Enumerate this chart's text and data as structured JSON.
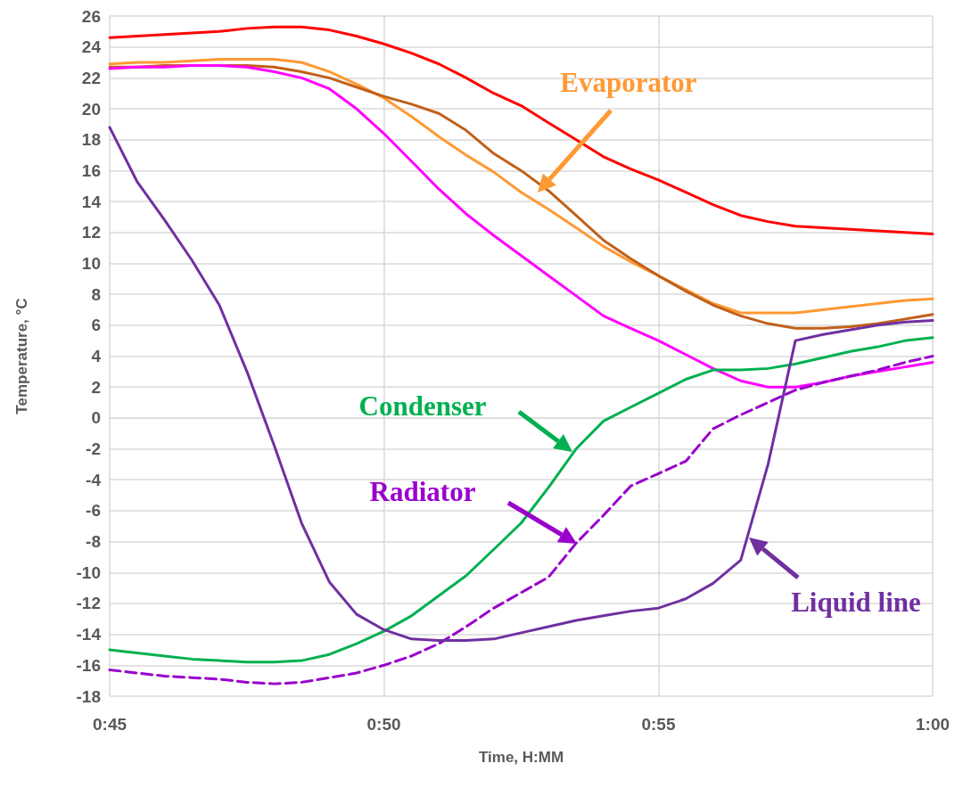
{
  "chart_data": {
    "type": "line",
    "xlabel": "Time, H:MM",
    "ylabel": "Temperature, °C",
    "x": [
      0.75,
      0.7583,
      0.7667,
      0.775,
      0.7833,
      0.7917,
      0.8,
      0.8083,
      0.8167,
      0.825,
      0.8333,
      0.8417,
      0.85,
      0.8583,
      0.8667,
      0.875,
      0.8833,
      0.8917,
      0.9,
      0.9083,
      0.9167,
      0.925,
      0.9333,
      0.9417,
      0.95,
      0.9583,
      0.9667,
      0.975,
      0.9833,
      0.9917,
      1.0
    ],
    "xlim": [
      0.75,
      1.0
    ],
    "xticks": [
      {
        "value": 0.75,
        "label": "0:45"
      },
      {
        "value": 0.8333,
        "label": "0:50"
      },
      {
        "value": 0.9167,
        "label": "0:55"
      },
      {
        "value": 1.0,
        "label": "1:00"
      }
    ],
    "ylim": [
      -18,
      26
    ],
    "yticks": [
      -18,
      -16,
      -14,
      -12,
      -10,
      -8,
      -6,
      -4,
      -2,
      0,
      2,
      4,
      6,
      8,
      10,
      12,
      14,
      16,
      18,
      20,
      22,
      24,
      26
    ],
    "grid": true,
    "marker": "none",
    "line_style": "solid",
    "series": [
      {
        "color": "#ff0000",
        "values": [
          24.6,
          24.7,
          24.8,
          24.9,
          25.0,
          25.2,
          25.3,
          25.3,
          25.1,
          24.7,
          24.2,
          23.6,
          22.9,
          22.0,
          21.0,
          20.2,
          19.1,
          18.0,
          16.9,
          16.1,
          15.4,
          14.6,
          13.8,
          13.1,
          12.7,
          12.4,
          12.3,
          12.2,
          12.1,
          12.0,
          11.9
        ]
      },
      {
        "name": "Evaporator",
        "color": "#ff9933",
        "values": [
          22.9,
          23.0,
          23.0,
          23.1,
          23.2,
          23.2,
          23.2,
          23.0,
          22.4,
          21.6,
          20.7,
          19.5,
          18.2,
          17.0,
          15.9,
          14.6,
          13.5,
          12.3,
          11.1,
          10.1,
          9.2,
          8.3,
          7.4,
          6.8,
          6.8,
          6.8,
          7.0,
          7.2,
          7.4,
          7.6,
          7.7
        ]
      },
      {
        "color": "#c0601a",
        "values": [
          22.7,
          22.7,
          22.8,
          22.8,
          22.8,
          22.8,
          22.7,
          22.4,
          22.0,
          21.4,
          20.8,
          20.3,
          19.7,
          18.6,
          17.1,
          16.0,
          14.7,
          13.1,
          11.5,
          10.3,
          9.2,
          8.2,
          7.3,
          6.6,
          6.1,
          5.8,
          5.8,
          5.9,
          6.1,
          6.4,
          6.7
        ]
      },
      {
        "color": "#ff00ff",
        "values": [
          22.6,
          22.7,
          22.7,
          22.8,
          22.8,
          22.7,
          22.4,
          22.0,
          21.3,
          20.0,
          18.4,
          16.6,
          14.8,
          13.2,
          11.8,
          10.5,
          9.2,
          7.9,
          6.6,
          5.8,
          5.0,
          4.1,
          3.2,
          2.4,
          2.0,
          2.0,
          2.3,
          2.7,
          3.0,
          3.3,
          3.6
        ]
      },
      {
        "name": "Condenser",
        "color": "#00b050",
        "values": [
          -15.0,
          -15.2,
          -15.4,
          -15.6,
          -15.7,
          -15.8,
          -15.8,
          -15.7,
          -15.3,
          -14.6,
          -13.8,
          -12.8,
          -11.5,
          -10.2,
          -8.5,
          -6.8,
          -4.5,
          -2.0,
          -0.2,
          0.7,
          1.6,
          2.5,
          3.1,
          3.1,
          3.2,
          3.5,
          3.9,
          4.3,
          4.6,
          5.0,
          5.2
        ]
      },
      {
        "name": "Radiator",
        "color": "#9900cc",
        "line_style": "dashed",
        "values": [
          -16.3,
          -16.5,
          -16.7,
          -16.8,
          -16.9,
          -17.1,
          -17.2,
          -17.1,
          -16.8,
          -16.5,
          -16.0,
          -15.4,
          -14.6,
          -13.5,
          -12.3,
          -11.3,
          -10.3,
          -8.1,
          -6.3,
          -4.4,
          -3.6,
          -2.8,
          -0.7,
          0.2,
          1.0,
          1.8,
          2.3,
          2.7,
          3.1,
          3.6,
          4.0
        ]
      },
      {
        "name": "Liquid line",
        "color": "#7030a0",
        "values": [
          18.8,
          15.3,
          12.8,
          10.2,
          7.3,
          3.0,
          -1.8,
          -6.8,
          -10.6,
          -12.7,
          -13.7,
          -14.3,
          -14.4,
          -14.4,
          -14.3,
          -13.9,
          -13.5,
          -13.1,
          -12.8,
          -12.5,
          -12.3,
          -11.7,
          -10.7,
          -9.2,
          -3.0,
          5.0,
          5.4,
          5.7,
          6.0,
          6.2,
          6.3
        ]
      }
    ]
  }
}
